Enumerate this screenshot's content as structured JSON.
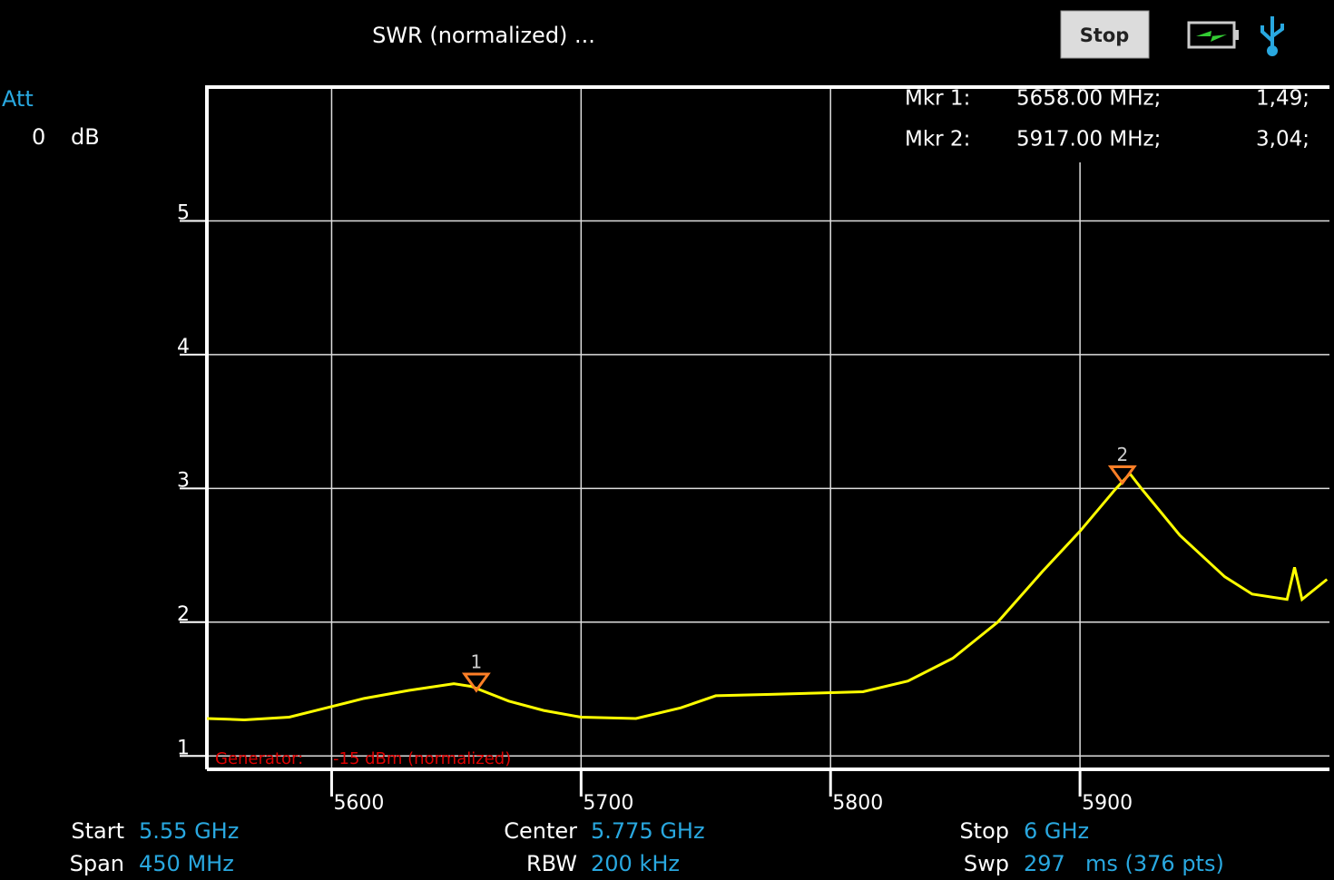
{
  "header": {
    "title": "SWR (normalized) ...",
    "button": "Stop",
    "att_label": "Att",
    "att_value": "0",
    "att_unit": "dB"
  },
  "chart_data": {
    "type": "line",
    "color": "#ffff00",
    "x": [
      5550,
      5565,
      5583,
      5598,
      5613,
      5631,
      5649,
      5656,
      5671,
      5685,
      5700,
      5722,
      5740,
      5754,
      5776,
      5794,
      5813,
      5831,
      5849,
      5867,
      5885,
      5900,
      5914,
      5920,
      5925,
      5940,
      5958,
      5969,
      5983,
      5986,
      5989,
      5999
    ],
    "values": [
      1.28,
      1.27,
      1.29,
      1.36,
      1.43,
      1.49,
      1.54,
      1.52,
      1.41,
      1.34,
      1.29,
      1.28,
      1.36,
      1.45,
      1.46,
      1.47,
      1.48,
      1.56,
      1.73,
      2.0,
      2.38,
      2.68,
      2.99,
      3.11,
      2.99,
      2.65,
      2.34,
      2.21,
      2.17,
      2.41,
      2.17,
      2.32
    ],
    "xlim": [
      5550,
      6000
    ],
    "xticks": [
      5600,
      5700,
      5800,
      5900
    ],
    "ylim": [
      0.9,
      6
    ],
    "yticks": [
      1,
      2,
      3,
      4,
      5
    ],
    "grid": true,
    "marker_color": "#ff7f27",
    "markers": [
      {
        "name": "1",
        "label": "Mkr 1:",
        "x": 5658,
        "x_label": "5658.00 MHz;",
        "y": 1.49,
        "y_label": "1,49;"
      },
      {
        "name": "2",
        "label": "Mkr 2:",
        "x": 5917,
        "x_label": "5917.00 MHz;",
        "y": 3.04,
        "y_label": "3,04;"
      }
    ],
    "annotation": {
      "label": "Generator:",
      "value": "-15 dBm (normalized)"
    }
  },
  "footer": {
    "start_label": "Start",
    "start": "5.55 GHz",
    "span_label": "Span",
    "span": "450 MHz",
    "center_label": "Center",
    "center": "5.775 GHz",
    "rbw_label": "RBW",
    "rbw": "200 kHz",
    "stop_label": "Stop",
    "stop": "6 GHz",
    "swp_label": "Swp",
    "swp": "297",
    "swp_unit": "ms (376 pts)"
  }
}
